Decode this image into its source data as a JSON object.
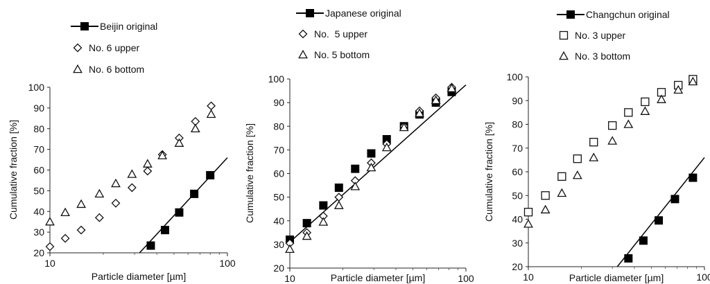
{
  "chart_data": [
    {
      "type": "scatter",
      "xscale": "log",
      "xlim": [
        10,
        100
      ],
      "ylim": [
        20,
        100
      ],
      "xlabel": "Particle diameter [µm]",
      "ylabel": "Cumulative fraction [%]",
      "x_ticks": [
        "10",
        "100"
      ],
      "y_ticks": [
        "20",
        "30",
        "40",
        "50",
        "60",
        "70",
        "80",
        "90",
        "100"
      ],
      "legend_position": "top",
      "series": [
        {
          "name": "Beijin original",
          "marker": "filled-square",
          "line": true,
          "points": [
            [
              37,
              23.5
            ],
            [
              44.5,
              31
            ],
            [
              53.5,
              39.5
            ],
            [
              65,
              48.5
            ],
            [
              80,
              57.5
            ]
          ],
          "fit_line": [
            [
              32,
              20
            ],
            [
              100,
              66
            ]
          ]
        },
        {
          "name": "No. 6 upper",
          "marker": "diamond",
          "points": [
            [
              10,
              23
            ],
            [
              12.2,
              27
            ],
            [
              15,
              31
            ],
            [
              19,
              37
            ],
            [
              23.5,
              44
            ],
            [
              29,
              51.5
            ],
            [
              35.5,
              59.5
            ],
            [
              43,
              67.5
            ],
            [
              53.5,
              75.5
            ],
            [
              66,
              83.5
            ],
            [
              81,
              91
            ]
          ]
        },
        {
          "name": "No. 6 bottom",
          "marker": "triangle",
          "points": [
            [
              10,
              35
            ],
            [
              12.2,
              39.5
            ],
            [
              15,
              43.5
            ],
            [
              19,
              48.5
            ],
            [
              23.5,
              53.5
            ],
            [
              29,
              58
            ],
            [
              35.5,
              63
            ],
            [
              43,
              67
            ],
            [
              53.5,
              73
            ],
            [
              66,
              80
            ],
            [
              81,
              87
            ]
          ]
        }
      ]
    },
    {
      "type": "scatter",
      "xscale": "log",
      "xlim": [
        10,
        100
      ],
      "ylim": [
        20,
        100
      ],
      "xlabel": "Particle diameter [µm]",
      "ylabel": "Cumulative fraction [%]",
      "x_ticks": [
        "10",
        "100"
      ],
      "y_ticks": [
        "20",
        "30",
        "40",
        "50",
        "60",
        "70",
        "80",
        "90",
        "100"
      ],
      "legend_position": "top",
      "series": [
        {
          "name": "Japanese original",
          "marker": "filled-square",
          "line": true,
          "points": [
            [
              10,
              32
            ],
            [
              12.5,
              39
            ],
            [
              15.5,
              46.5
            ],
            [
              19,
              54
            ],
            [
              23.5,
              62
            ],
            [
              29,
              68.5
            ],
            [
              35.5,
              74.5
            ],
            [
              44.5,
              80
            ],
            [
              54.5,
              85
            ],
            [
              67.5,
              90
            ],
            [
              83,
              94.5
            ]
          ],
          "fit_line": [
            [
              10,
              31
            ],
            [
              100,
              97.5
            ]
          ]
        },
        {
          "name": "No.  5 upper",
          "marker": "diamond",
          "points": [
            [
              10,
              30.5
            ],
            [
              12.5,
              35
            ],
            [
              15.5,
              42
            ],
            [
              19,
              50
            ],
            [
              23.5,
              57
            ],
            [
              29,
              64.5
            ],
            [
              35.5,
              72.5
            ],
            [
              44.5,
              80
            ],
            [
              54.5,
              86.5
            ],
            [
              67.5,
              92
            ],
            [
              83,
              96.5
            ]
          ]
        },
        {
          "name": "No. 5 bottom",
          "marker": "triangle",
          "points": [
            [
              10,
              28
            ],
            [
              12.5,
              33.5
            ],
            [
              15.5,
              39.5
            ],
            [
              19,
              46.5
            ],
            [
              23.5,
              54.5
            ],
            [
              29,
              62.5
            ],
            [
              35.5,
              71
            ],
            [
              44.5,
              79.5
            ],
            [
              54.5,
              85.5
            ],
            [
              67.5,
              91
            ],
            [
              83,
              96
            ]
          ]
        }
      ]
    },
    {
      "type": "scatter",
      "xscale": "log",
      "xlim": [
        10,
        100
      ],
      "ylim": [
        20,
        100
      ],
      "xlabel": "Particle diameter [µm]",
      "ylabel": "Cumulative fraction [%]",
      "x_ticks": [
        "10",
        "100"
      ],
      "y_ticks": [
        "20",
        "30",
        "40",
        "50",
        "60",
        "70",
        "80",
        "90",
        "100"
      ],
      "legend_position": "top",
      "series": [
        {
          "name": "Changchun original",
          "marker": "filled-square",
          "line": true,
          "points": [
            [
              37,
              23.5
            ],
            [
              45,
              31
            ],
            [
              55,
              39.5
            ],
            [
              68,
              48.5
            ],
            [
              86,
              57.5
            ]
          ],
          "fit_line": [
            [
              32,
              20
            ],
            [
              100,
              66
            ]
          ]
        },
        {
          "name": "No. 3 upper",
          "marker": "open-square",
          "points": [
            [
              10,
              43
            ],
            [
              12.5,
              50
            ],
            [
              15.5,
              58
            ],
            [
              19,
              65.5
            ],
            [
              23.5,
              72.5
            ],
            [
              30,
              79.5
            ],
            [
              37,
              85
            ],
            [
              46,
              89.5
            ],
            [
              57,
              93.5
            ],
            [
              71,
              96.5
            ],
            [
              86,
              99
            ]
          ]
        },
        {
          "name": "No. 3 bottom",
          "marker": "triangle",
          "points": [
            [
              10,
              38
            ],
            [
              12.5,
              44
            ],
            [
              15.5,
              51
            ],
            [
              19,
              58.5
            ],
            [
              23.5,
              66
            ],
            [
              30,
              73
            ],
            [
              37,
              80
            ],
            [
              46,
              85.5
            ],
            [
              57,
              90.5
            ],
            [
              71,
              94.5
            ],
            [
              86,
              98
            ]
          ]
        }
      ]
    }
  ]
}
